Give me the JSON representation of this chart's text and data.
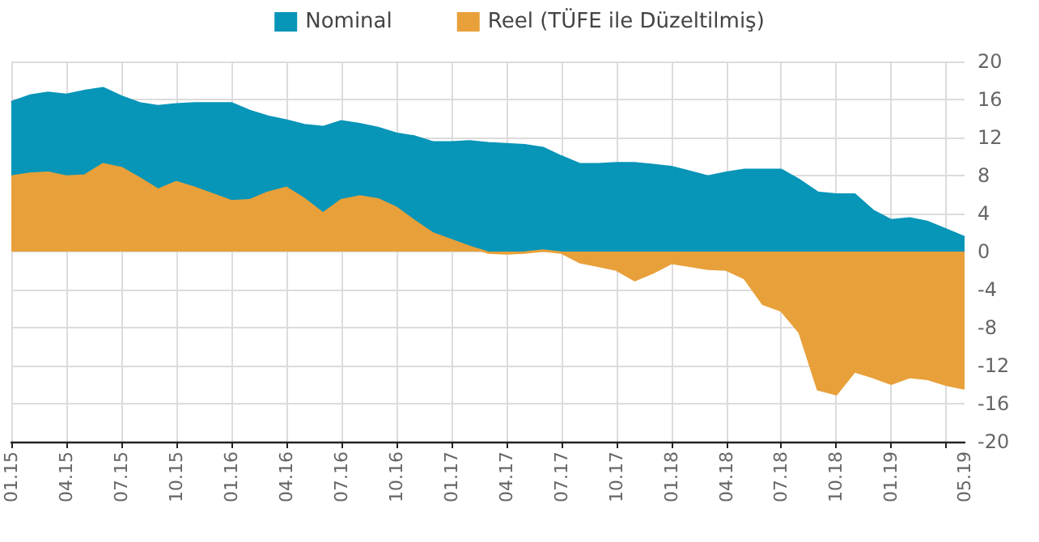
{
  "chart_data": {
    "type": "area",
    "categories": [
      "01.15",
      null,
      null,
      "04.15",
      null,
      null,
      "07.15",
      null,
      null,
      "10.15",
      null,
      null,
      "01.16",
      null,
      null,
      "04.16",
      null,
      null,
      "07.16",
      null,
      null,
      "10.16",
      null,
      null,
      "01.17",
      null,
      null,
      "04.17",
      null,
      null,
      "07.17",
      null,
      null,
      "10.17",
      null,
      null,
      "01.18",
      null,
      null,
      "04.18",
      null,
      null,
      "07.18",
      null,
      null,
      "10.18",
      null,
      null,
      "01.19",
      null,
      null,
      null,
      "05.19"
    ],
    "series": [
      {
        "name": "Nominal",
        "color": "#0795b8",
        "values": [
          15.7,
          16.4,
          16.7,
          16.5,
          16.9,
          17.2,
          16.3,
          15.6,
          15.3,
          15.5,
          15.6,
          15.6,
          15.6,
          14.8,
          14.2,
          13.8,
          13.3,
          13.1,
          13.7,
          13.4,
          13.0,
          12.4,
          12.1,
          11.5,
          11.5,
          11.6,
          11.4,
          11.3,
          11.2,
          10.9,
          10.0,
          9.2,
          9.2,
          9.3,
          9.3,
          9.1,
          8.9,
          8.4,
          7.9,
          8.3,
          8.6,
          8.6,
          8.6,
          7.5,
          6.2,
          6.0,
          6.0,
          4.3,
          3.3,
          3.5,
          3.1,
          2.3,
          1.5
        ]
      },
      {
        "name": "Reel (TÜFE ile Düzeltilmiş)",
        "color": "#e8a03a",
        "values": [
          7.9,
          8.2,
          8.3,
          7.9,
          8.0,
          9.2,
          8.8,
          7.7,
          6.5,
          7.3,
          6.7,
          6.0,
          5.3,
          5.4,
          6.2,
          6.7,
          5.5,
          4.0,
          5.4,
          5.8,
          5.5,
          4.6,
          3.2,
          1.9,
          1.2,
          0.5,
          -0.1,
          -0.2,
          -0.1,
          0.1,
          -0.1,
          -1.1,
          -1.5,
          -1.9,
          -3.0,
          -2.2,
          -1.2,
          -1.5,
          -1.8,
          -1.9,
          -2.8,
          -5.5,
          -6.2,
          -8.5,
          -14.5,
          -15.0,
          -12.6,
          -13.2,
          -13.9,
          -13.2,
          -13.4,
          -14.0,
          -14.4
        ]
      }
    ],
    "ylim": [
      -20,
      20
    ],
    "yticks": [
      -20,
      -16,
      -12,
      -8,
      -4,
      0,
      4,
      8,
      12,
      16,
      20
    ],
    "grid": true,
    "legend": "top",
    "marker": "none",
    "line_style": "solid"
  }
}
